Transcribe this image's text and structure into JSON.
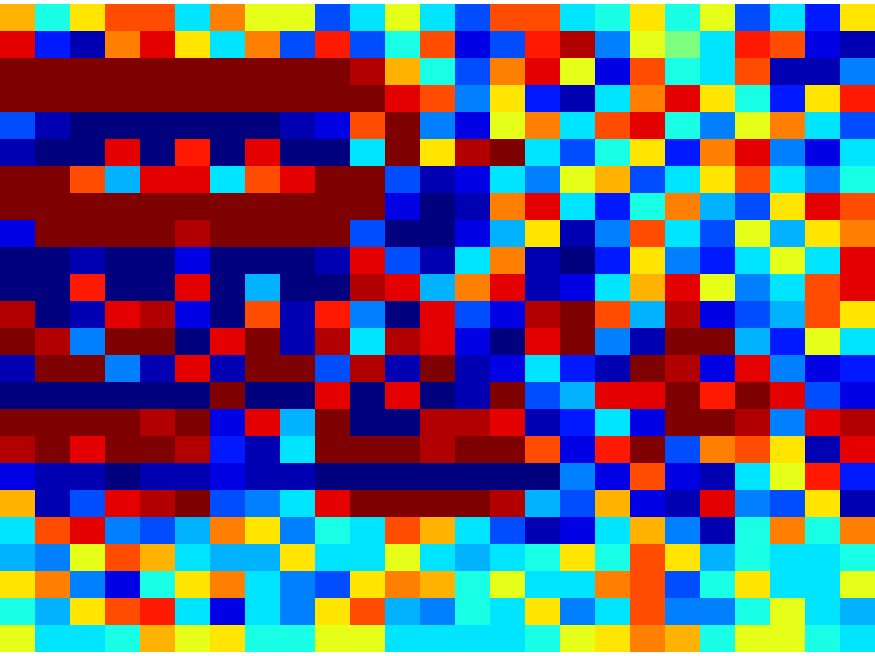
{
  "chart_data": {
    "type": "heatmap",
    "tick_labels": false,
    "color_range": [
      -10,
      10
    ],
    "cells": [
      [
        4,
        -2,
        3,
        6,
        6,
        -3,
        5,
        2,
        2,
        -6,
        -3,
        2,
        -3,
        -6,
        6,
        6,
        -3,
        -2,
        3,
        -2,
        2,
        -6,
        -3,
        -7,
        3
      ],
      [
        8,
        -7,
        -9,
        5,
        8,
        3,
        -3,
        5,
        -6,
        7,
        -6,
        -2,
        6,
        -8,
        -6,
        7,
        9,
        -5,
        2,
        0,
        -3,
        7,
        6,
        -8,
        -9
      ],
      [
        10,
        10,
        10,
        10,
        10,
        10,
        10,
        10,
        10,
        10,
        9,
        4,
        -2,
        -6,
        5,
        8,
        2,
        -8,
        6,
        -2,
        -3,
        6,
        -9,
        -9,
        -5
      ],
      [
        10,
        10,
        10,
        10,
        10,
        10,
        10,
        10,
        10,
        10,
        10,
        8,
        6,
        -5,
        3,
        -7,
        -9,
        -3,
        5,
        8,
        3,
        -2,
        -7,
        3,
        7
      ],
      [
        -6,
        -9,
        -10,
        -10,
        -10,
        -10,
        -10,
        -10,
        -9,
        -8,
        6,
        10,
        -5,
        -8,
        2,
        5,
        -3,
        6,
        8,
        -2,
        -5,
        2,
        5,
        -3,
        -6
      ],
      [
        -9,
        -10,
        -10,
        8,
        -10,
        7,
        -10,
        8,
        -10,
        -10,
        -3,
        10,
        3,
        9,
        10,
        -3,
        -6,
        -2,
        3,
        -7,
        5,
        8,
        -5,
        -8,
        -3
      ],
      [
        10,
        10,
        6,
        -4,
        8,
        8,
        -3,
        6,
        8,
        10,
        10,
        -6,
        -9,
        -8,
        -3,
        -5,
        2,
        4,
        -6,
        -3,
        3,
        6,
        -3,
        -5,
        -2
      ],
      [
        10,
        10,
        10,
        10,
        10,
        10,
        10,
        10,
        10,
        10,
        10,
        -8,
        -10,
        -9,
        5,
        8,
        -3,
        -7,
        -2,
        5,
        -4,
        -6,
        3,
        8,
        6
      ],
      [
        -8,
        10,
        10,
        10,
        10,
        9,
        10,
        10,
        10,
        10,
        -6,
        -10,
        -10,
        -8,
        -4,
        3,
        -9,
        -5,
        6,
        -3,
        -6,
        2,
        -4,
        3,
        5
      ],
      [
        -10,
        -10,
        -9,
        -10,
        -10,
        -8,
        -10,
        -10,
        -10,
        -9,
        8,
        -6,
        -9,
        -3,
        5,
        -9,
        -10,
        -7,
        3,
        -5,
        -7,
        -3,
        2,
        -3,
        8
      ],
      [
        -10,
        -10,
        7,
        -10,
        -10,
        8,
        -10,
        -4,
        -10,
        -10,
        9,
        8,
        -4,
        5,
        8,
        -9,
        -8,
        -3,
        4,
        8,
        2,
        -5,
        -3,
        6,
        8
      ],
      [
        9,
        -10,
        -9,
        8,
        9,
        -8,
        -10,
        6,
        -9,
        7,
        -5,
        -10,
        8,
        -6,
        -8,
        9,
        10,
        6,
        -4,
        9,
        -8,
        -6,
        -4,
        6,
        3
      ],
      [
        10,
        9,
        -5,
        10,
        10,
        -10,
        8,
        10,
        -9,
        9,
        -3,
        9,
        8,
        -8,
        -10,
        8,
        10,
        -5,
        -9,
        10,
        10,
        -4,
        -7,
        2,
        -3
      ],
      [
        -9,
        10,
        10,
        -5,
        -9,
        8,
        -9,
        10,
        10,
        -6,
        9,
        -9,
        10,
        -9,
        -8,
        -3,
        -7,
        -9,
        10,
        9,
        -8,
        8,
        -5,
        -8,
        -7
      ],
      [
        -10,
        -10,
        -10,
        -10,
        -10,
        -10,
        10,
        -10,
        -10,
        8,
        -10,
        8,
        -10,
        -9,
        10,
        -6,
        -4,
        8,
        8,
        10,
        7,
        10,
        8,
        -6,
        -8
      ],
      [
        10,
        10,
        10,
        10,
        9,
        10,
        -8,
        8,
        -4,
        10,
        -10,
        -10,
        9,
        9,
        8,
        -9,
        -7,
        -3,
        -8,
        10,
        10,
        9,
        -5,
        8,
        9
      ],
      [
        9,
        10,
        8,
        10,
        10,
        9,
        -7,
        -9,
        -3,
        10,
        10,
        10,
        9,
        10,
        10,
        6,
        -8,
        7,
        10,
        -6,
        5,
        6,
        3,
        -9,
        8
      ],
      [
        -8,
        -9,
        -9,
        -10,
        -9,
        -9,
        -8,
        -9,
        -9,
        -10,
        -10,
        -10,
        -10,
        -10,
        -10,
        -10,
        -5,
        -8,
        6,
        -8,
        -9,
        -3,
        2,
        7,
        -7
      ],
      [
        4,
        -9,
        -6,
        8,
        9,
        10,
        -6,
        -5,
        -3,
        8,
        10,
        10,
        10,
        10,
        9,
        -4,
        -6,
        4,
        -8,
        -9,
        8,
        -5,
        -6,
        3,
        -9
      ],
      [
        -3,
        6,
        8,
        -5,
        -6,
        -4,
        5,
        3,
        -5,
        -2,
        -3,
        6,
        4,
        -3,
        -6,
        -9,
        -8,
        -3,
        4,
        -5,
        -9,
        -2,
        5,
        -2,
        5
      ],
      [
        -4,
        -5,
        2,
        6,
        4,
        -3,
        -4,
        -4,
        3,
        -3,
        -3,
        2,
        -3,
        -4,
        -3,
        -2,
        3,
        -2,
        6,
        3,
        -4,
        -2,
        -3,
        -3,
        -2
      ],
      [
        3,
        5,
        -5,
        -8,
        -2,
        3,
        5,
        -3,
        -5,
        -6,
        3,
        5,
        4,
        -2,
        2,
        -3,
        -3,
        5,
        6,
        -6,
        -2,
        3,
        -3,
        -3,
        2
      ],
      [
        -2,
        -4,
        3,
        6,
        7,
        -3,
        -8,
        -3,
        -5,
        3,
        6,
        -4,
        -5,
        -2,
        -3,
        3,
        -5,
        -3,
        6,
        -5,
        -5,
        -2,
        2,
        -3,
        -4
      ],
      [
        2,
        -3,
        -3,
        -2,
        4,
        2,
        3,
        -2,
        -2,
        2,
        2,
        -3,
        -3,
        -3,
        -3,
        -2,
        2,
        3,
        5,
        4,
        -2,
        2,
        2,
        -2,
        -3
      ]
    ]
  }
}
